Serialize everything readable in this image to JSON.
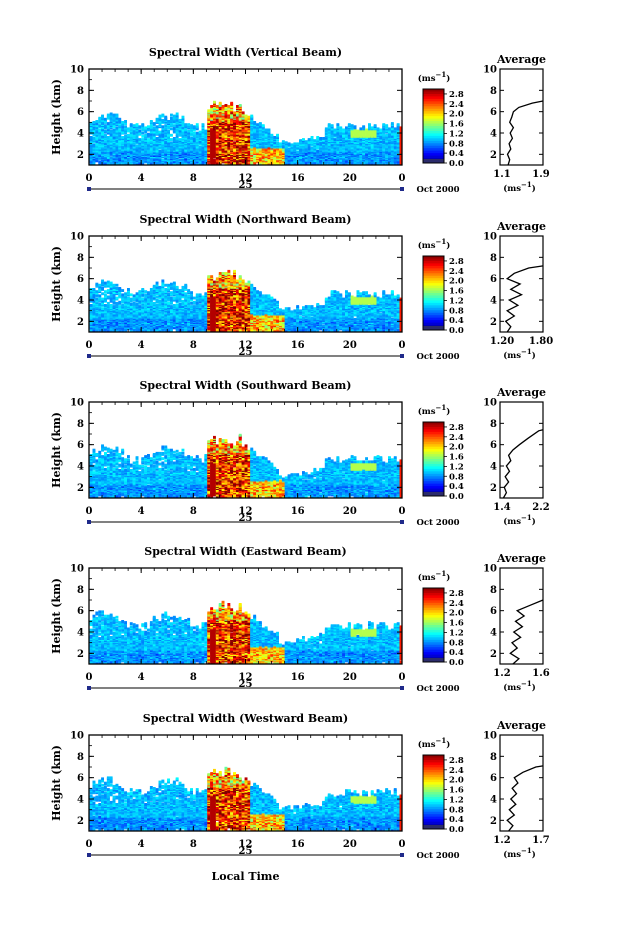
{
  "figure": {
    "ylabel": "Height (km)",
    "colorbar_unit": "(ms",
    "colorbar_unit_exp": "−1",
    "date_label": "Oct 2000",
    "day_label": "25",
    "xlabel": "Local Time",
    "avg_title": "Average",
    "avg_unit": "(ms",
    "avg_unit_exp": "−1",
    "avg_unit_close": ")"
  },
  "chart_data": [
    {
      "type": "heatmap",
      "title": "Spectral Width (Vertical Beam)",
      "xlabel": "Local Time",
      "ylabel": "Height (km)",
      "xlim": [
        0,
        24
      ],
      "ylim": [
        1,
        10
      ],
      "xticks": [
        "0",
        "4",
        "8",
        "12",
        "16",
        "20",
        "0"
      ],
      "yticks": [
        "2",
        "4",
        "6",
        "8",
        "10"
      ],
      "colorbar": {
        "label": "(ms−1)",
        "ticks": [
          "2.8",
          "2.4",
          "2.0",
          "1.6",
          "1.2",
          "0.8",
          "0.4",
          "0.0"
        ],
        "range": [
          0,
          3.0
        ]
      },
      "average": {
        "title": "Average",
        "xlabel": "(ms−1)",
        "xlim": [
          1.1,
          1.9
        ],
        "xticks": [
          "1.1",
          "1.9"
        ],
        "yticks": [
          "2",
          "4",
          "6",
          "8",
          "10"
        ],
        "profile": [
          [
            1.25,
            1.0
          ],
          [
            1.28,
            1.5
          ],
          [
            1.24,
            2.0
          ],
          [
            1.3,
            2.5
          ],
          [
            1.27,
            3.0
          ],
          [
            1.33,
            3.5
          ],
          [
            1.29,
            4.0
          ],
          [
            1.35,
            4.5
          ],
          [
            1.28,
            5.0
          ],
          [
            1.32,
            5.5
          ],
          [
            1.35,
            6.0
          ],
          [
            1.45,
            6.4
          ],
          [
            1.7,
            6.8
          ],
          [
            1.9,
            7.0
          ]
        ]
      }
    },
    {
      "type": "heatmap",
      "title": "Spectral Width (Northward Beam)",
      "xlabel": "Local Time",
      "ylabel": "Height (km)",
      "xlim": [
        0,
        24
      ],
      "ylim": [
        1,
        10
      ],
      "xticks": [
        "0",
        "4",
        "8",
        "12",
        "16",
        "20",
        "0"
      ],
      "yticks": [
        "2",
        "4",
        "6",
        "8",
        "10"
      ],
      "colorbar": {
        "label": "(ms−1)",
        "ticks": [
          "2.8",
          "2.4",
          "2.0",
          "1.6",
          "1.2",
          "0.8",
          "0.4",
          "0.0"
        ],
        "range": [
          0,
          3.0
        ]
      },
      "average": {
        "title": "Average",
        "xlabel": "(ms−1)",
        "xlim": [
          1.2,
          1.8
        ],
        "xticks": [
          "1.20",
          "1.80"
        ],
        "yticks": [
          "2",
          "4",
          "6",
          "8",
          "10"
        ],
        "profile": [
          [
            1.3,
            1.0
          ],
          [
            1.35,
            1.5
          ],
          [
            1.28,
            2.0
          ],
          [
            1.4,
            2.5
          ],
          [
            1.3,
            3.0
          ],
          [
            1.45,
            3.5
          ],
          [
            1.33,
            4.0
          ],
          [
            1.5,
            4.5
          ],
          [
            1.35,
            5.0
          ],
          [
            1.48,
            5.5
          ],
          [
            1.3,
            6.0
          ],
          [
            1.4,
            6.5
          ],
          [
            1.6,
            7.0
          ],
          [
            1.8,
            7.2
          ]
        ]
      }
    },
    {
      "type": "heatmap",
      "title": "Spectral Width (Southward Beam)",
      "xlabel": "Local Time",
      "ylabel": "Height (km)",
      "xlim": [
        0,
        24
      ],
      "ylim": [
        1,
        10
      ],
      "xticks": [
        "0",
        "4",
        "8",
        "12",
        "16",
        "20",
        "0"
      ],
      "yticks": [
        "2",
        "4",
        "6",
        "8",
        "10"
      ],
      "colorbar": {
        "label": "(ms−1)",
        "ticks": [
          "2.8",
          "2.4",
          "2.0",
          "1.6",
          "1.2",
          "0.8",
          "0.4",
          "0.0"
        ],
        "range": [
          0,
          3.0
        ]
      },
      "average": {
        "title": "Average",
        "xlabel": "(ms−1)",
        "xlim": [
          1.3,
          2.3
        ],
        "xticks": [
          "1.4",
          "2.2"
        ],
        "yticks": [
          "2",
          "4",
          "6",
          "8",
          "10"
        ],
        "profile": [
          [
            1.38,
            1.0
          ],
          [
            1.45,
            1.5
          ],
          [
            1.4,
            2.0
          ],
          [
            1.5,
            2.5
          ],
          [
            1.42,
            3.0
          ],
          [
            1.52,
            3.5
          ],
          [
            1.45,
            4.0
          ],
          [
            1.55,
            4.5
          ],
          [
            1.5,
            5.0
          ],
          [
            1.6,
            5.5
          ],
          [
            1.75,
            6.0
          ],
          [
            1.95,
            6.6
          ],
          [
            2.2,
            7.3
          ],
          [
            2.3,
            7.4
          ]
        ]
      }
    },
    {
      "type": "heatmap",
      "title": "Spectral Width (Eastward Beam)",
      "xlabel": "Local Time",
      "ylabel": "Height (km)",
      "xlim": [
        0,
        24
      ],
      "ylim": [
        1,
        10
      ],
      "xticks": [
        "0",
        "4",
        "8",
        "12",
        "16",
        "20",
        "0"
      ],
      "yticks": [
        "2",
        "4",
        "6",
        "8",
        "10"
      ],
      "colorbar": {
        "label": "(ms−1)",
        "ticks": [
          "2.8",
          "2.4",
          "2.0",
          "1.6",
          "1.2",
          "0.8",
          "0.4",
          "0.0"
        ],
        "range": [
          0,
          3.0
        ]
      },
      "average": {
        "title": "Average",
        "xlabel": "(ms−1)",
        "xlim": [
          1.1,
          1.6
        ],
        "xticks": [
          "1.2",
          "1.6"
        ],
        "yticks": [
          "2",
          "4",
          "6",
          "8",
          "10"
        ],
        "profile": [
          [
            1.25,
            1.0
          ],
          [
            1.32,
            1.5
          ],
          [
            1.22,
            2.0
          ],
          [
            1.3,
            2.5
          ],
          [
            1.24,
            3.0
          ],
          [
            1.34,
            3.5
          ],
          [
            1.26,
            4.0
          ],
          [
            1.36,
            4.5
          ],
          [
            1.28,
            5.0
          ],
          [
            1.38,
            5.5
          ],
          [
            1.3,
            6.0
          ],
          [
            1.45,
            6.5
          ],
          [
            1.6,
            7.0
          ]
        ]
      }
    },
    {
      "type": "heatmap",
      "title": "Spectral Width (Westward Beam)",
      "xlabel": "Local Time",
      "ylabel": "Height (km)",
      "xlim": [
        0,
        24
      ],
      "ylim": [
        1,
        10
      ],
      "xticks": [
        "0",
        "4",
        "8",
        "12",
        "16",
        "20",
        "0"
      ],
      "yticks": [
        "2",
        "4",
        "6",
        "8",
        "10"
      ],
      "colorbar": {
        "label": "(ms−1)",
        "ticks": [
          "2.8",
          "2.4",
          "2.0",
          "1.6",
          "1.2",
          "0.8",
          "0.4",
          "0.0"
        ],
        "range": [
          0,
          3.0
        ]
      },
      "average": {
        "title": "Average",
        "xlabel": "(ms−1)",
        "xlim": [
          1.1,
          1.7
        ],
        "xticks": [
          "1.2",
          "1.7"
        ],
        "yticks": [
          "2",
          "4",
          "6",
          "8",
          "10"
        ],
        "profile": [
          [
            1.22,
            1.0
          ],
          [
            1.28,
            1.5
          ],
          [
            1.2,
            2.0
          ],
          [
            1.3,
            2.5
          ],
          [
            1.23,
            3.0
          ],
          [
            1.32,
            3.5
          ],
          [
            1.25,
            4.0
          ],
          [
            1.33,
            4.5
          ],
          [
            1.27,
            5.0
          ],
          [
            1.35,
            5.5
          ],
          [
            1.3,
            6.0
          ],
          [
            1.42,
            6.5
          ],
          [
            1.6,
            7.0
          ],
          [
            1.7,
            7.1
          ]
        ]
      }
    }
  ]
}
